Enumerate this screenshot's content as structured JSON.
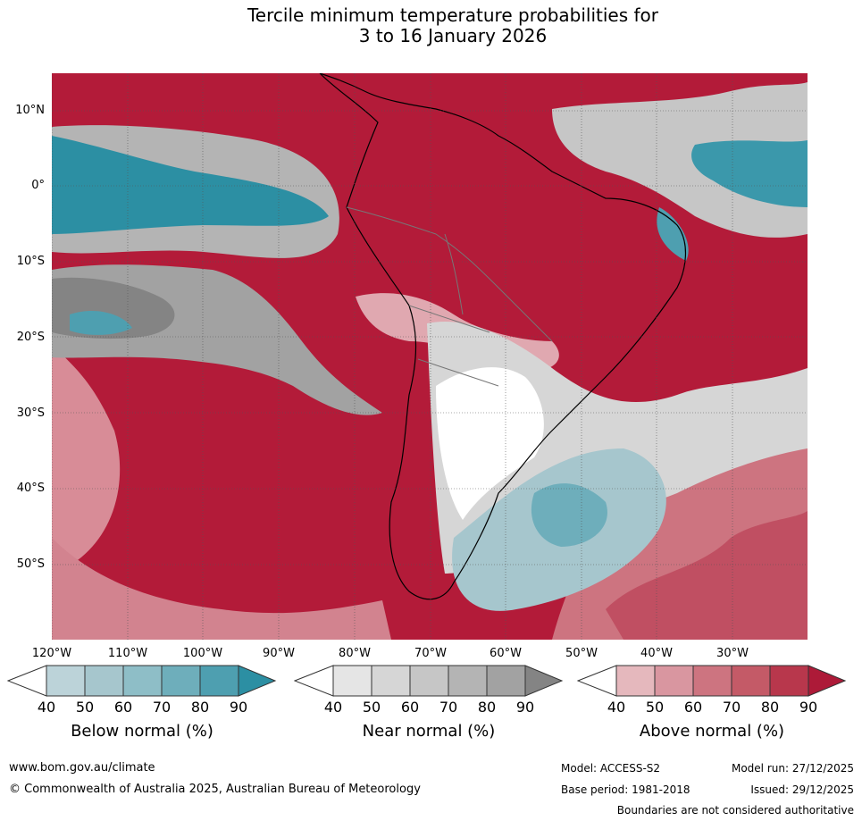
{
  "title": {
    "line1": "Tercile minimum temperature probabilities for",
    "line2": "3 to 16 January 2026"
  },
  "axes": {
    "lat_labels": [
      "10°N",
      "0°",
      "10°S",
      "20°S",
      "30°S",
      "40°S",
      "50°S"
    ],
    "lon_labels": [
      "120°W",
      "110°W",
      "100°W",
      "90°W",
      "80°W",
      "70°W",
      "60°W",
      "50°W",
      "40°W",
      "30°W"
    ]
  },
  "colorbars": {
    "below": {
      "title": "Below normal (%)",
      "ticks": [
        "40",
        "50",
        "60",
        "70",
        "80",
        "90"
      ],
      "colors": [
        "#bcd3d9",
        "#a6c6cd",
        "#8ebec7",
        "#6eaebb",
        "#4e9fb0",
        "#2c8fa3"
      ]
    },
    "near": {
      "title": "Near normal (%)",
      "ticks": [
        "40",
        "50",
        "60",
        "70",
        "80",
        "90"
      ],
      "colors": [
        "#e5e5e5",
        "#d6d6d6",
        "#c6c6c6",
        "#b4b4b4",
        "#a2a2a2",
        "#848484"
      ]
    },
    "above": {
      "title": "Above normal (%)",
      "ticks": [
        "40",
        "50",
        "60",
        "70",
        "80",
        "90"
      ],
      "colors": [
        "#e5b8bd",
        "#d996a0",
        "#cd7480",
        "#c45a67",
        "#b8374c",
        "#ad1a38"
      ]
    }
  },
  "footer": {
    "website": "www.bom.gov.au/climate",
    "copyright": "© Commonwealth of Australia 2025, Australian Bureau of Meteorology",
    "model": "Model: ACCESS-S2",
    "base_period": "Base period: 1981-2018",
    "model_run": "Model run: 27/12/2025",
    "issued": "Issued: 29/12/2025",
    "disclaimer": "Boundaries are not considered authoritative"
  }
}
